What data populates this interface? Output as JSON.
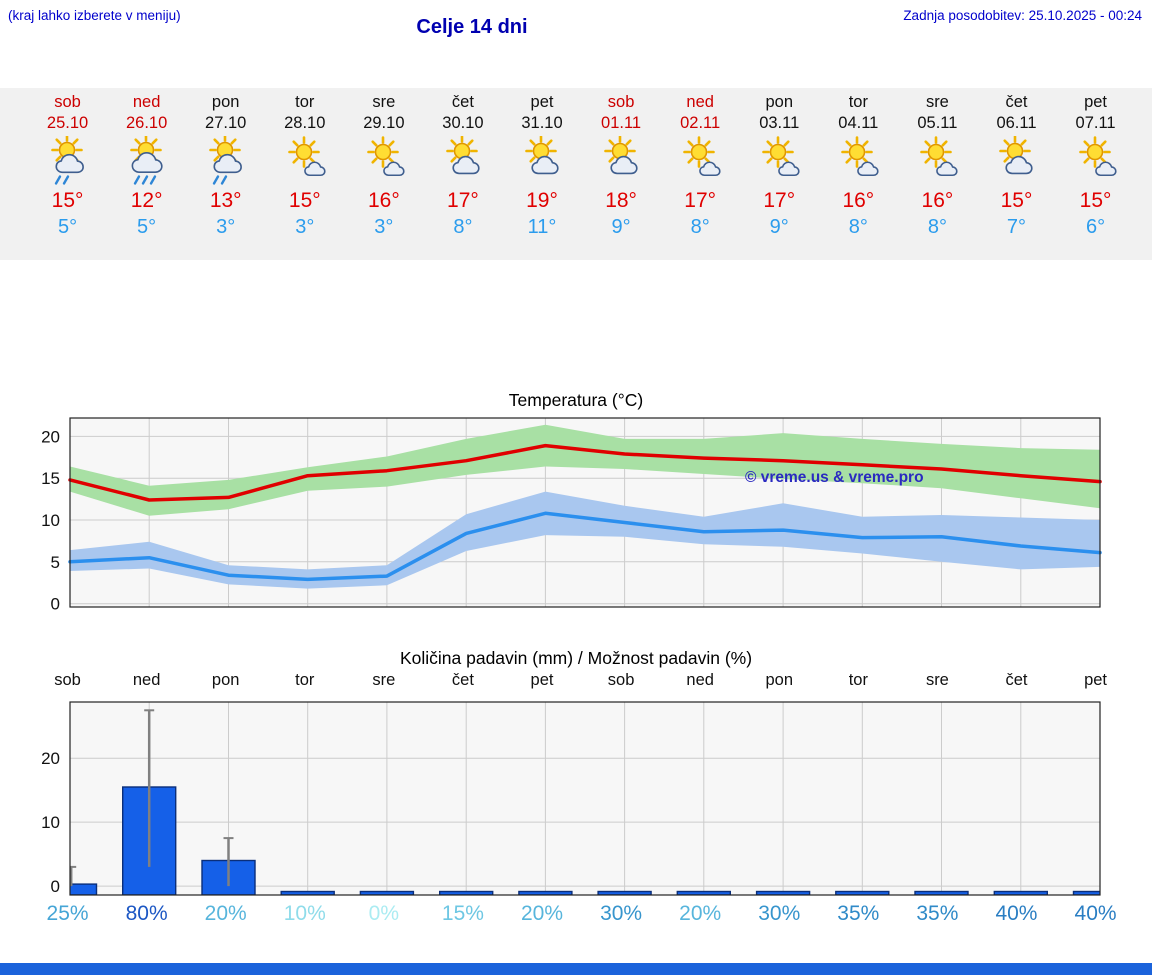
{
  "header": {
    "menu_hint": "(kraj lahko izberete v meniju)",
    "title": "Celje 14 dni",
    "last_update": "Zadnja posodobitev: 25.10.2025 - 00:24"
  },
  "forecast": {
    "days": [
      {
        "name": "sob",
        "date": "25.10",
        "weekend": true,
        "icon": "sun-cloud-rain-icon",
        "tmax": "15°",
        "tmin": "5°"
      },
      {
        "name": "ned",
        "date": "26.10",
        "weekend": true,
        "icon": "sun-cloud-heavy-rain-icon",
        "tmax": "12°",
        "tmin": "5°"
      },
      {
        "name": "pon",
        "date": "27.10",
        "weekend": false,
        "icon": "sun-cloud-rain-icon",
        "tmax": "13°",
        "tmin": "3°"
      },
      {
        "name": "tor",
        "date": "28.10",
        "weekend": false,
        "icon": "sun-small-cloud-icon",
        "tmax": "15°",
        "tmin": "3°"
      },
      {
        "name": "sre",
        "date": "29.10",
        "weekend": false,
        "icon": "sun-small-cloud-icon",
        "tmax": "16°",
        "tmin": "3°"
      },
      {
        "name": "čet",
        "date": "30.10",
        "weekend": false,
        "icon": "sun-cloud-icon",
        "tmax": "17°",
        "tmin": "8°"
      },
      {
        "name": "pet",
        "date": "31.10",
        "weekend": false,
        "icon": "sun-cloud-icon",
        "tmax": "19°",
        "tmin": "11°"
      },
      {
        "name": "sob",
        "date": "01.11",
        "weekend": true,
        "icon": "sun-cloud-icon",
        "tmax": "18°",
        "tmin": "9°"
      },
      {
        "name": "ned",
        "date": "02.11",
        "weekend": true,
        "icon": "sun-small-cloud-icon",
        "tmax": "17°",
        "tmin": "8°"
      },
      {
        "name": "pon",
        "date": "03.11",
        "weekend": false,
        "icon": "sun-small-cloud-icon",
        "tmax": "17°",
        "tmin": "9°"
      },
      {
        "name": "tor",
        "date": "04.11",
        "weekend": false,
        "icon": "sun-small-cloud-icon",
        "tmax": "16°",
        "tmin": "8°"
      },
      {
        "name": "sre",
        "date": "05.11",
        "weekend": false,
        "icon": "sun-small-cloud-icon",
        "tmax": "16°",
        "tmin": "8°"
      },
      {
        "name": "čet",
        "date": "06.11",
        "weekend": false,
        "icon": "sun-cloud-icon",
        "tmax": "15°",
        "tmin": "7°"
      },
      {
        "name": "pet",
        "date": "07.11",
        "weekend": false,
        "icon": "sun-small-cloud-icon",
        "tmax": "15°",
        "tmin": "6°"
      }
    ]
  },
  "chart_data": [
    {
      "type": "line",
      "title": "Temperatura (°C)",
      "x_labels": [
        "25.10",
        "26.10",
        "27.10",
        "28.10",
        "29.10",
        "30.10",
        "31.10",
        "01.11",
        "02.11",
        "03.11",
        "04.11",
        "05.11",
        "06.11",
        "07.11"
      ],
      "ylim": [
        -0.4,
        22.2
      ],
      "yticks": [
        0,
        5,
        10,
        15,
        20
      ],
      "grid": true,
      "watermark": "© vreme.us & vreme.pro",
      "series": [
        {
          "name": "max-temperature",
          "color": "#e00000",
          "band_color": "#a8e0a4",
          "values": [
            14.8,
            12.4,
            12.7,
            15.3,
            15.9,
            17.1,
            18.9,
            17.9,
            17.4,
            17.1,
            16.6,
            16.1,
            15.3,
            14.6
          ],
          "band_high": [
            16.4,
            14.1,
            14.8,
            16.3,
            17.6,
            19.7,
            21.4,
            19.7,
            19.7,
            20.4,
            19.7,
            19.1,
            18.6,
            18.4
          ],
          "band_low": [
            13.4,
            10.5,
            11.3,
            13.5,
            14.0,
            15.4,
            16.4,
            16.1,
            15.5,
            14.9,
            14.4,
            13.8,
            12.6,
            11.4
          ]
        },
        {
          "name": "min-temperature",
          "color": "#2b8fee",
          "band_color": "#a9c7ef",
          "values": [
            5.0,
            5.5,
            3.4,
            2.9,
            3.3,
            8.4,
            10.8,
            9.7,
            8.6,
            8.8,
            7.9,
            8.0,
            6.9,
            6.1
          ],
          "band_high": [
            6.4,
            7.4,
            4.6,
            4.1,
            4.6,
            10.7,
            13.4,
            11.7,
            10.4,
            12.0,
            10.4,
            10.6,
            10.3,
            10.0
          ],
          "band_low": [
            3.9,
            4.2,
            2.3,
            1.8,
            2.2,
            6.3,
            8.2,
            8.0,
            7.1,
            6.8,
            6.0,
            5.0,
            4.1,
            4.4
          ]
        }
      ]
    },
    {
      "type": "bar",
      "title": "Količina padavin (mm) / Možnost padavin (%)",
      "categories": [
        "sob",
        "ned",
        "pon",
        "tor",
        "sre",
        "čet",
        "pet",
        "sob",
        "ned",
        "pon",
        "tor",
        "sre",
        "čet",
        "pet"
      ],
      "values": [
        0.3,
        15.5,
        4,
        0,
        0,
        0,
        0,
        0,
        0,
        0,
        0,
        0,
        0,
        0
      ],
      "whiskers": [
        [
          0,
          3
        ],
        [
          3,
          27.5
        ],
        [
          0,
          7.5
        ],
        null,
        null,
        null,
        null,
        null,
        null,
        null,
        null,
        null,
        null,
        null
      ],
      "ylim": [
        -1.4,
        28.8
      ],
      "yticks": [
        0,
        10,
        20
      ],
      "bar_color": "#1560e8",
      "bar_edge": "#0a2e7a",
      "whisker_color": "#808080",
      "probabilities": [
        {
          "label": "25%",
          "color": "#45a5d6"
        },
        {
          "label": "80%",
          "color": "#1c57c4"
        },
        {
          "label": "20%",
          "color": "#57b5dc"
        },
        {
          "label": "10%",
          "color": "#8fdcea"
        },
        {
          "label": "0%",
          "color": "#abecf2"
        },
        {
          "label": "15%",
          "color": "#6ec7e3"
        },
        {
          "label": "20%",
          "color": "#57b5dc"
        },
        {
          "label": "30%",
          "color": "#3795cd"
        },
        {
          "label": "20%",
          "color": "#57b5dc"
        },
        {
          "label": "30%",
          "color": "#3795cd"
        },
        {
          "label": "35%",
          "color": "#2f8ac8"
        },
        {
          "label": "35%",
          "color": "#2f8ac8"
        },
        {
          "label": "40%",
          "color": "#2a7ec3"
        },
        {
          "label": "40%",
          "color": "#2a7ec3"
        }
      ]
    }
  ],
  "colors": {
    "accent_blue": "#0000cc",
    "title_blue": "#0000b0",
    "weekend_red": "#cc0000",
    "tmax_red": "#e00000",
    "tmin_blue": "#2b9ced",
    "strip_bg": "#f1f1f1",
    "chart_bg": "#f7f7f7",
    "footer_bar": "#1b63db",
    "watermark_blue": "#2a2ac0"
  }
}
